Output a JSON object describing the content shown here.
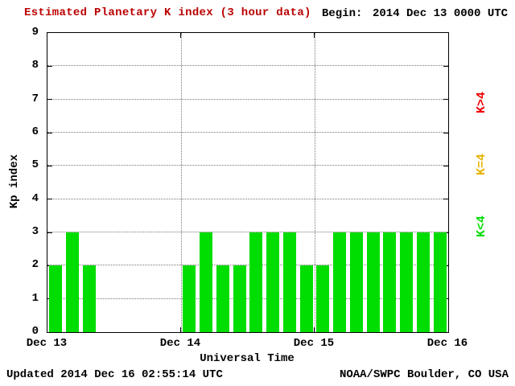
{
  "header": {
    "title": "Estimated Planetary K index (3 hour data)",
    "begin_label": "Begin:",
    "begin_value": "2014 Dec 13 0000 UTC"
  },
  "footer": {
    "updated": "Updated 2014 Dec 16 02:55:14 UTC",
    "source": "NOAA/SWPC Boulder, CO USA"
  },
  "chart_data": {
    "type": "bar",
    "title": "Estimated Planetary K index (3 hour data)",
    "xlabel": "Universal Time",
    "ylabel": "Kp index",
    "ylim": [
      0,
      9
    ],
    "yticks": [
      0,
      1,
      2,
      3,
      4,
      5,
      6,
      7,
      8,
      9
    ],
    "x_slots": 24,
    "slots_per_day": 8,
    "hours_per_bar": 3,
    "xtick_labels": [
      "Dec 13",
      "Dec 14",
      "Dec 15",
      "Dec 16"
    ],
    "values": [
      2,
      3,
      2,
      0,
      0,
      0,
      0,
      0,
      2,
      3,
      2,
      2,
      3,
      3,
      3,
      2,
      2,
      3,
      3,
      3,
      3,
      3,
      3,
      3
    ],
    "legend": [
      {
        "label": "K>4",
        "color": "#ee0000"
      },
      {
        "label": "K=4",
        "color": "#e6b400"
      },
      {
        "label": "K<4",
        "color": "#00dd00"
      }
    ],
    "colors": {
      "bar_low": "#00dd00",
      "bar_mid": "#e6b400",
      "bar_high": "#ee0000",
      "title": "#bb0000",
      "grid": "#777777"
    },
    "grid": true,
    "legend_position": "right"
  }
}
